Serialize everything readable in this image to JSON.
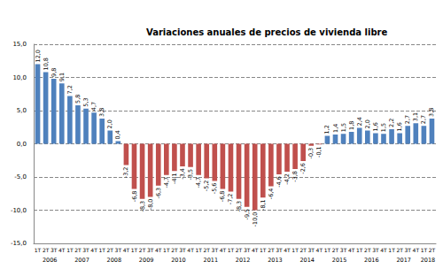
{
  "chart_data": {
    "type": "bar",
    "title": "Variaciones anuales de precios de vivienda libre",
    "categories": [
      "1T",
      "2T",
      "3T",
      "4T",
      "1T",
      "2T",
      "3T",
      "4T",
      "1T",
      "2T",
      "3T",
      "4T",
      "1T",
      "2T",
      "3T",
      "4T",
      "1T",
      "2T",
      "3T",
      "4T",
      "1T",
      "2T",
      "3T",
      "4T",
      "1T",
      "2T",
      "3T",
      "4T",
      "1T",
      "2T",
      "3T",
      "4T",
      "1T",
      "2T",
      "3T",
      "4T",
      "1T",
      "2T",
      "3T",
      "4T",
      "1T",
      "2T",
      "3T",
      "4T",
      "1T",
      "2T",
      "3T",
      "4T",
      "1T",
      "2T"
    ],
    "x_groups": [
      {
        "label": "2006",
        "size": 4
      },
      {
        "label": "2007",
        "size": 4
      },
      {
        "label": "2008",
        "size": 4
      },
      {
        "label": "2009",
        "size": 4
      },
      {
        "label": "2010",
        "size": 4
      },
      {
        "label": "2011",
        "size": 4
      },
      {
        "label": "2012",
        "size": 4
      },
      {
        "label": "2013",
        "size": 4
      },
      {
        "label": "2014",
        "size": 4
      },
      {
        "label": "2015",
        "size": 4
      },
      {
        "label": "2016",
        "size": 4
      },
      {
        "label": "2017",
        "size": 4
      },
      {
        "label": "2018",
        "size": 2
      }
    ],
    "values": [
      12.0,
      10.8,
      9.8,
      9.1,
      7.2,
      5.8,
      5.3,
      4.7,
      3.8,
      2.0,
      0.4,
      -3.2,
      -6.8,
      -8.3,
      -8.0,
      -6.3,
      -4.7,
      -4.1,
      -3.4,
      -3.5,
      -4.7,
      -5.2,
      -5.6,
      -6.8,
      -7.2,
      -8.3,
      -9.5,
      -10.0,
      -8.1,
      -6.4,
      -4.6,
      -4.2,
      -3.8,
      -2.6,
      -0.3,
      -0.1,
      1.2,
      1.4,
      1.5,
      1.8,
      2.4,
      2.0,
      1.6,
      1.5,
      2.2,
      1.6,
      2.7,
      3.1,
      2.7,
      3.8
    ],
    "value_labels": [
      "12,0",
      "10,8",
      "9,8",
      "9,1",
      "7,2",
      "5,8",
      "5,3",
      "4,7",
      "3,8",
      "2,0",
      "0,4",
      "-3,2",
      "-6,8",
      "-8,3",
      "-8,0",
      "-6,3",
      "-4,7",
      "-4,1",
      "-3,4",
      "-3,5",
      "-4,7",
      "-5,2",
      "-5,6",
      "-6,8",
      "-7,2",
      "-8,3",
      "-9,5",
      "-10,0",
      "-8,1",
      "-6,4",
      "-4,6",
      "-4,2",
      "-3,8",
      "-2,6",
      "-0,3",
      "-0,1",
      "1,2",
      "1,4",
      "1,5",
      "1,8",
      "2,4",
      "2,0",
      "1,6",
      "1,5",
      "2,2",
      "1,6",
      "2,7",
      "3,1",
      "2,7",
      "3,8"
    ],
    "colors": [
      "#4f81bd",
      "#4f81bd",
      "#4f81bd",
      "#4f81bd",
      "#4f81bd",
      "#4f81bd",
      "#4f81bd",
      "#4f81bd",
      "#4f81bd",
      "#4f81bd",
      "#4f81bd",
      "#c0504d",
      "#c0504d",
      "#c0504d",
      "#c0504d",
      "#c0504d",
      "#c0504d",
      "#c0504d",
      "#c0504d",
      "#c0504d",
      "#c0504d",
      "#c0504d",
      "#c0504d",
      "#c0504d",
      "#c0504d",
      "#c0504d",
      "#c0504d",
      "#c0504d",
      "#c0504d",
      "#c0504d",
      "#c0504d",
      "#c0504d",
      "#c0504d",
      "#c0504d",
      "#c0504d",
      "#c0504d",
      "#4f81bd",
      "#4f81bd",
      "#4f81bd",
      "#4f81bd",
      "#4f81bd",
      "#4f81bd",
      "#4f81bd",
      "#4f81bd",
      "#4f81bd",
      "#4f81bd",
      "#4f81bd",
      "#4f81bd",
      "#4f81bd",
      "#4f81bd"
    ],
    "ylim": [
      -15,
      15
    ],
    "yticks": [
      {
        "value": -15,
        "label": "-15,0"
      },
      {
        "value": -10,
        "label": "-10,0"
      },
      {
        "value": -5,
        "label": "-5,0"
      },
      {
        "value": 0,
        "label": "0,0"
      },
      {
        "value": 5,
        "label": "5,0"
      },
      {
        "value": 10,
        "label": "10,0"
      },
      {
        "value": 15,
        "label": "15,0"
      }
    ],
    "grid": true,
    "data_labels": true
  }
}
